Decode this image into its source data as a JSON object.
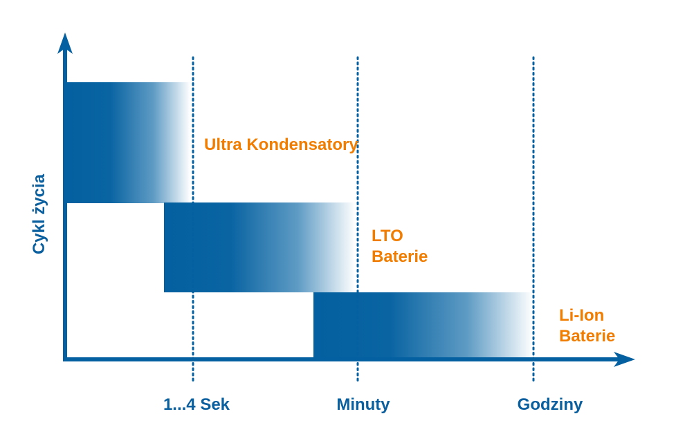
{
  "colors": {
    "axis": "#0460a0",
    "bar": "#0460a0",
    "label": "#f07d00",
    "axis_label": "#0a5f9e"
  },
  "y_axis_label": "Cykl życia",
  "x_ticks": [
    "1...4 Sek",
    "Minuty",
    "Godziny"
  ],
  "series": [
    {
      "name_lines": [
        "Ultra Kondensatory"
      ]
    },
    {
      "name_lines": [
        "LTO",
        "Baterie"
      ]
    },
    {
      "name_lines": [
        "Li-Ion",
        "Baterie"
      ]
    }
  ]
}
